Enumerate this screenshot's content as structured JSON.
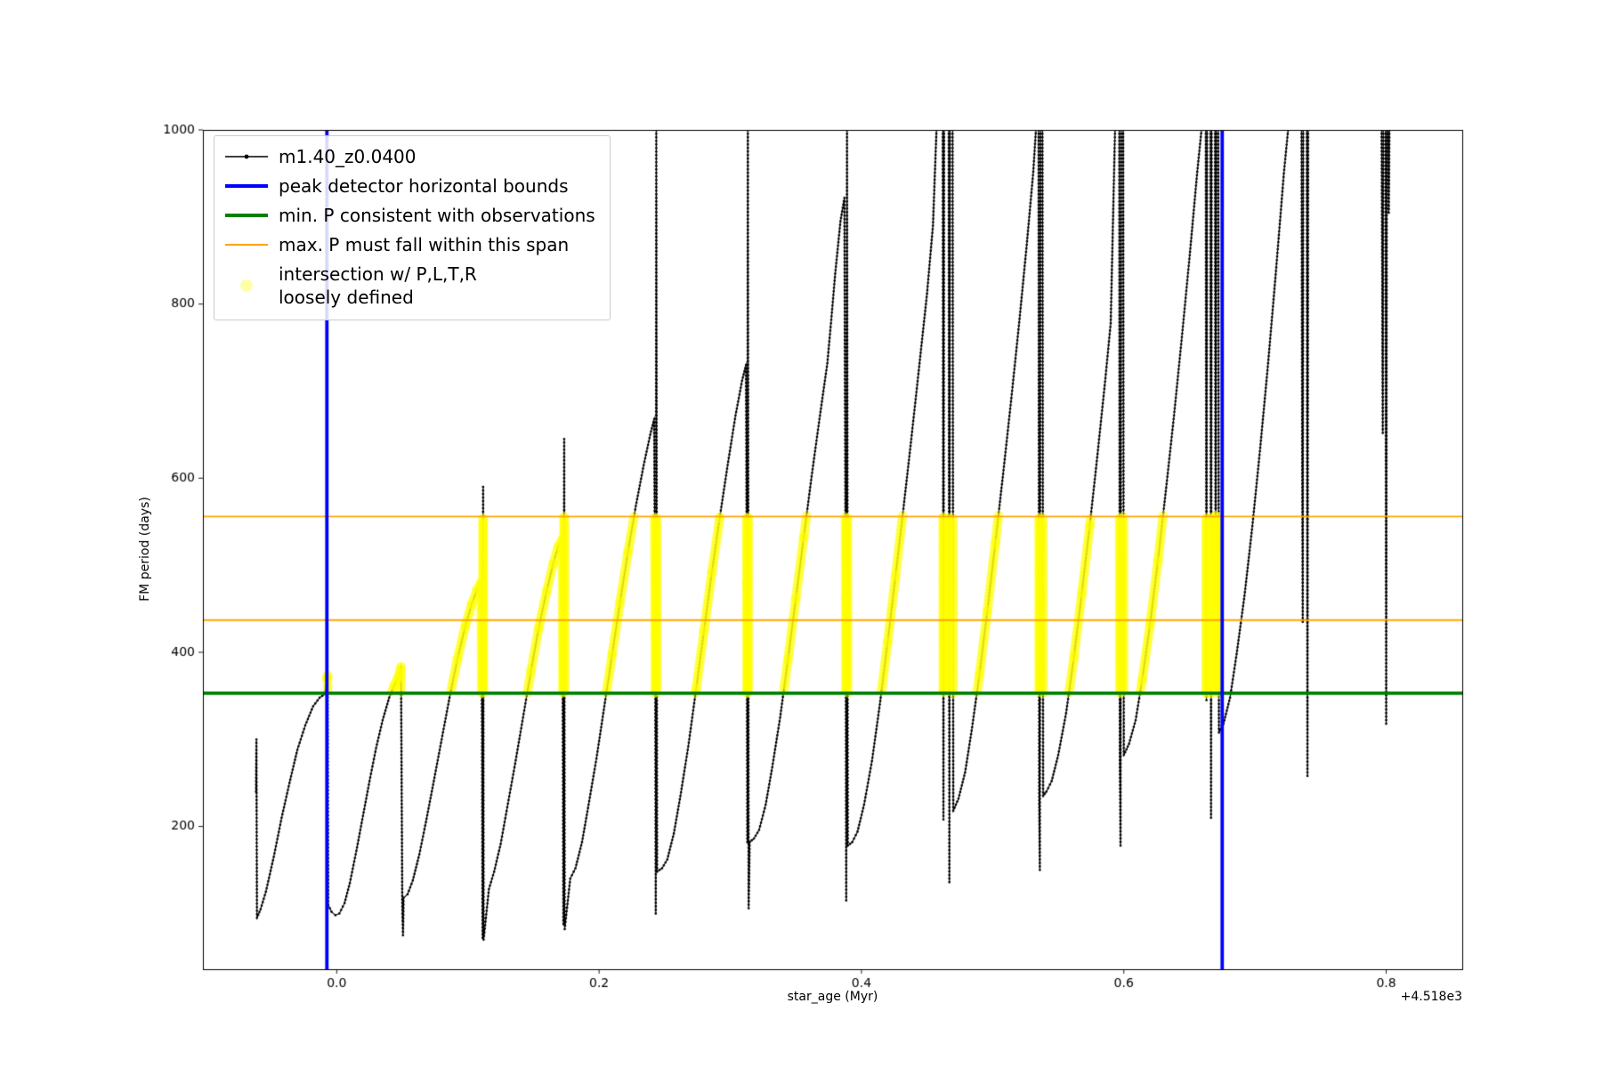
{
  "chart_data": {
    "type": "line",
    "title": "",
    "xlabel": "star_age (Myr)",
    "ylabel": "FM period (days)",
    "x_offset_text": "+4.518e3",
    "xlim": [
      -0.102,
      0.858
    ],
    "ylim": [
      36,
      1000
    ],
    "xticks": [
      0.0,
      0.2,
      0.4,
      0.6,
      0.8
    ],
    "xtick_labels": [
      "0.0",
      "0.2",
      "0.4",
      "0.6",
      "0.8"
    ],
    "yticks": [
      200,
      400,
      600,
      800,
      1000
    ],
    "ytick_labels": [
      "200",
      "400",
      "600",
      "800",
      "1000"
    ],
    "legend": {
      "position": "upper left",
      "entries": [
        {
          "label": "m1.40_z0.0400",
          "color": "#000000",
          "style": "line-marker"
        },
        {
          "label": "peak detector horizontal bounds",
          "color": "#0000ff",
          "style": "thick-line"
        },
        {
          "label": "min. P consistent with observations",
          "color": "#008000",
          "style": "thick-line"
        },
        {
          "label": "max. P must fall within this span",
          "color": "#ffa500",
          "style": "line"
        },
        {
          "label": "intersection w/ P,L,T,R\nloosely defined",
          "color": "#ffff00",
          "style": "marker"
        }
      ]
    },
    "bounds": {
      "x": [
        -0.0075,
        0.675
      ],
      "color": "#0000ff"
    },
    "min_line": {
      "y": 353,
      "color": "#008000"
    },
    "span_lines": {
      "y": [
        437,
        556
      ],
      "color": "#ffa500"
    },
    "highlight": {
      "band_y": [
        353,
        557
      ],
      "x_range": [
        -0.0075,
        0.675
      ],
      "color": "#ffff00"
    },
    "series": [
      {
        "name": "m1.40_z0.0400",
        "color": "#000000",
        "marker": "point",
        "points": [
          [
            -0.0615,
            240
          ],
          [
            -0.0612,
            300
          ],
          [
            -0.0608,
            95
          ],
          [
            -0.058,
            105
          ],
          [
            -0.054,
            125
          ],
          [
            -0.048,
            165
          ],
          [
            -0.042,
            210
          ],
          [
            -0.036,
            250
          ],
          [
            -0.03,
            288
          ],
          [
            -0.024,
            316
          ],
          [
            -0.018,
            338
          ],
          [
            -0.013,
            348
          ],
          [
            -0.009,
            352
          ],
          [
            -0.0075,
            370
          ],
          [
            -0.007,
            373
          ],
          [
            -0.0065,
            110
          ],
          [
            -0.004,
            102
          ],
          [
            -0.001,
            98
          ],
          [
            0.002,
            100
          ],
          [
            0.006,
            112
          ],
          [
            0.01,
            135
          ],
          [
            0.015,
            172
          ],
          [
            0.02,
            212
          ],
          [
            0.025,
            252
          ],
          [
            0.03,
            290
          ],
          [
            0.035,
            322
          ],
          [
            0.04,
            348
          ],
          [
            0.044,
            362
          ],
          [
            0.047,
            372
          ],
          [
            0.049,
            383
          ],
          [
            0.0495,
            250
          ],
          [
            0.05,
            108
          ],
          [
            0.0505,
            75
          ],
          [
            0.051,
            118
          ],
          [
            0.054,
            122
          ],
          [
            0.058,
            138
          ],
          [
            0.063,
            168
          ],
          [
            0.068,
            205
          ],
          [
            0.074,
            252
          ],
          [
            0.08,
            300
          ],
          [
            0.086,
            348
          ],
          [
            0.092,
            392
          ],
          [
            0.098,
            430
          ],
          [
            0.103,
            456
          ],
          [
            0.107,
            472
          ],
          [
            0.11,
            480
          ],
          [
            0.1108,
            300
          ],
          [
            0.1112,
            72
          ],
          [
            0.1116,
            590
          ],
          [
            0.112,
            70
          ],
          [
            0.116,
            128
          ],
          [
            0.12,
            148
          ],
          [
            0.125,
            180
          ],
          [
            0.13,
            222
          ],
          [
            0.136,
            272
          ],
          [
            0.142,
            325
          ],
          [
            0.148,
            378
          ],
          [
            0.154,
            428
          ],
          [
            0.16,
            470
          ],
          [
            0.165,
            502
          ],
          [
            0.169,
            522
          ],
          [
            0.172,
            530
          ],
          [
            0.1728,
            88
          ],
          [
            0.1734,
            645
          ],
          [
            0.1738,
            82
          ],
          [
            0.178,
            140
          ],
          [
            0.182,
            152
          ],
          [
            0.187,
            182
          ],
          [
            0.192,
            225
          ],
          [
            0.198,
            278
          ],
          [
            0.204,
            338
          ],
          [
            0.21,
            398
          ],
          [
            0.216,
            458
          ],
          [
            0.222,
            515
          ],
          [
            0.228,
            568
          ],
          [
            0.234,
            615
          ],
          [
            0.239,
            650
          ],
          [
            0.242,
            668
          ],
          [
            0.2428,
            420
          ],
          [
            0.2432,
            100
          ],
          [
            0.2436,
            1012
          ],
          [
            0.2442,
            148
          ],
          [
            0.248,
            152
          ],
          [
            0.252,
            162
          ],
          [
            0.257,
            192
          ],
          [
            0.262,
            235
          ],
          [
            0.268,
            292
          ],
          [
            0.274,
            358
          ],
          [
            0.28,
            425
          ],
          [
            0.286,
            492
          ],
          [
            0.292,
            555
          ],
          [
            0.298,
            615
          ],
          [
            0.304,
            672
          ],
          [
            0.309,
            712
          ],
          [
            0.312,
            730
          ],
          [
            0.3126,
            480
          ],
          [
            0.313,
            182
          ],
          [
            0.3134,
            1012
          ],
          [
            0.314,
            106
          ],
          [
            0.3148,
            182
          ],
          [
            0.318,
            186
          ],
          [
            0.322,
            196
          ],
          [
            0.327,
            225
          ],
          [
            0.332,
            268
          ],
          [
            0.338,
            325
          ],
          [
            0.344,
            392
          ],
          [
            0.35,
            462
          ],
          [
            0.356,
            532
          ],
          [
            0.362,
            602
          ],
          [
            0.368,
            668
          ],
          [
            0.374,
            732
          ],
          [
            0.377,
            782
          ],
          [
            0.38,
            835
          ],
          [
            0.384,
            895
          ],
          [
            0.387,
            922
          ],
          [
            0.3876,
            640
          ],
          [
            0.388,
            462
          ],
          [
            0.3884,
            115
          ],
          [
            0.389,
            1012
          ],
          [
            0.3896,
            178
          ],
          [
            0.393,
            182
          ],
          [
            0.397,
            194
          ],
          [
            0.402,
            225
          ],
          [
            0.408,
            275
          ],
          [
            0.414,
            340
          ],
          [
            0.42,
            412
          ],
          [
            0.426,
            488
          ],
          [
            0.432,
            565
          ],
          [
            0.438,
            645
          ],
          [
            0.444,
            728
          ],
          [
            0.45,
            812
          ],
          [
            0.4545,
            890
          ],
          [
            0.4575,
            1012
          ],
          [
            0.462,
            1012
          ],
          [
            0.4625,
            208
          ],
          [
            0.463,
            1012
          ],
          [
            0.4665,
            1012
          ],
          [
            0.467,
            136
          ],
          [
            0.4675,
            1012
          ],
          [
            0.4695,
            1012
          ],
          [
            0.47,
            218
          ],
          [
            0.474,
            232
          ],
          [
            0.479,
            262
          ],
          [
            0.484,
            310
          ],
          [
            0.49,
            375
          ],
          [
            0.496,
            448
          ],
          [
            0.502,
            525
          ],
          [
            0.508,
            605
          ],
          [
            0.514,
            688
          ],
          [
            0.52,
            775
          ],
          [
            0.526,
            868
          ],
          [
            0.531,
            952
          ],
          [
            0.5335,
            1012
          ],
          [
            0.535,
            1012
          ],
          [
            0.5355,
            230
          ],
          [
            0.536,
            150
          ],
          [
            0.5365,
            1012
          ],
          [
            0.538,
            1012
          ],
          [
            0.5385,
            235
          ],
          [
            0.541,
            240
          ],
          [
            0.545,
            252
          ],
          [
            0.55,
            282
          ],
          [
            0.556,
            330
          ],
          [
            0.562,
            395
          ],
          [
            0.568,
            468
          ],
          [
            0.574,
            545
          ],
          [
            0.58,
            628
          ],
          [
            0.586,
            715
          ],
          [
            0.59,
            778
          ],
          [
            0.5935,
            1012
          ],
          [
            0.5965,
            1012
          ],
          [
            0.597,
            272
          ],
          [
            0.5975,
            178
          ],
          [
            0.598,
            1012
          ],
          [
            0.5995,
            1012
          ],
          [
            0.6,
            282
          ],
          [
            0.604,
            295
          ],
          [
            0.609,
            322
          ],
          [
            0.614,
            368
          ],
          [
            0.62,
            432
          ],
          [
            0.626,
            505
          ],
          [
            0.632,
            585
          ],
          [
            0.638,
            668
          ],
          [
            0.644,
            758
          ],
          [
            0.65,
            852
          ],
          [
            0.656,
            952
          ],
          [
            0.66,
            1012
          ],
          [
            0.6625,
            1012
          ],
          [
            0.663,
            345
          ],
          [
            0.6635,
            1012
          ],
          [
            0.666,
            1012
          ],
          [
            0.6665,
            210
          ],
          [
            0.667,
            1012
          ],
          [
            0.6695,
            1012
          ],
          [
            0.67,
            352
          ],
          [
            0.6705,
            1012
          ],
          [
            0.672,
            1012
          ],
          [
            0.6725,
            308
          ],
          [
            0.676,
            318
          ],
          [
            0.681,
            348
          ],
          [
            0.686,
            398
          ],
          [
            0.692,
            465
          ],
          [
            0.698,
            545
          ],
          [
            0.704,
            635
          ],
          [
            0.71,
            732
          ],
          [
            0.716,
            838
          ],
          [
            0.722,
            950
          ],
          [
            0.726,
            1012
          ],
          [
            0.7355,
            1012
          ],
          [
            0.736,
            638
          ],
          [
            0.7364,
            435
          ],
          [
            0.7368,
            1012
          ],
          [
            0.7395,
            1012
          ],
          [
            0.74,
            258
          ],
          [
            0.7405,
            1012
          ],
          [
            0.7965,
            1012
          ],
          [
            0.797,
            838
          ],
          [
            0.7974,
            652
          ],
          [
            0.7978,
            1012
          ],
          [
            0.7995,
            1012
          ],
          [
            0.8,
            318
          ],
          [
            0.8005,
            1012
          ],
          [
            0.8015,
            1012
          ],
          [
            0.802,
            905
          ],
          [
            0.8025,
            1012
          ]
        ]
      }
    ]
  }
}
